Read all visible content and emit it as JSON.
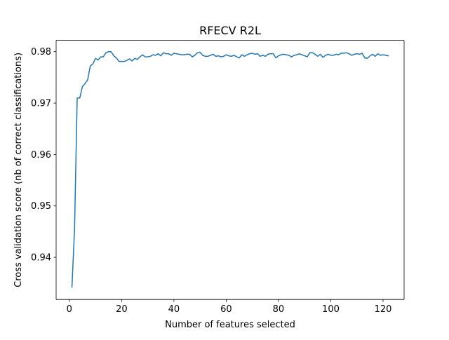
{
  "chart_data": {
    "type": "line",
    "title": "RFECV R2L",
    "xlabel": "Number of features selected",
    "ylabel": "Cross validation score (nb of correct classifications)",
    "xlim": [
      -5.05,
      128.05
    ],
    "ylim": [
      0.9318,
      0.9822
    ],
    "x_ticks": [
      0,
      20,
      40,
      60,
      80,
      100,
      120
    ],
    "x_tick_labels": [
      "0",
      "20",
      "40",
      "60",
      "80",
      "100",
      "120"
    ],
    "y_ticks": [
      0.94,
      0.95,
      0.96,
      0.97,
      0.98
    ],
    "y_tick_labels": [
      "0.94",
      "0.95",
      "0.96",
      "0.97",
      "0.98"
    ],
    "grid": false,
    "series": [
      {
        "color": "#1f77b4",
        "x": [
          1,
          2,
          3,
          4,
          5,
          6,
          7,
          8,
          9,
          10,
          11,
          12,
          13,
          14,
          15,
          16,
          17,
          18,
          19,
          20,
          21,
          22,
          23,
          24,
          25,
          26,
          27,
          28,
          29,
          30,
          31,
          32,
          33,
          34,
          35,
          36,
          37,
          38,
          39,
          40,
          41,
          42,
          43,
          44,
          45,
          46,
          47,
          48,
          49,
          50,
          51,
          52,
          53,
          54,
          55,
          56,
          57,
          58,
          59,
          60,
          61,
          62,
          63,
          64,
          65,
          66,
          67,
          68,
          69,
          70,
          71,
          72,
          73,
          74,
          75,
          76,
          77,
          78,
          79,
          80,
          81,
          82,
          83,
          84,
          85,
          86,
          87,
          88,
          89,
          90,
          91,
          92,
          93,
          94,
          95,
          96,
          97,
          98,
          99,
          100,
          101,
          102,
          103,
          104,
          105,
          106,
          107,
          108,
          109,
          110,
          111,
          112,
          113,
          114,
          115,
          116,
          117,
          118,
          119,
          120,
          121,
          122
        ],
        "y": [
          0.9342,
          0.9455,
          0.971,
          0.971,
          0.9732,
          0.9738,
          0.9745,
          0.9772,
          0.9776,
          0.9787,
          0.9784,
          0.979,
          0.979,
          0.9798,
          0.98,
          0.98,
          0.9792,
          0.9788,
          0.9781,
          0.9781,
          0.9781,
          0.9783,
          0.9786,
          0.9782,
          0.9787,
          0.9785,
          0.979,
          0.9794,
          0.979,
          0.979,
          0.9791,
          0.9794,
          0.9793,
          0.9796,
          0.9792,
          0.9798,
          0.9796,
          0.9796,
          0.9793,
          0.9797,
          0.9796,
          0.9795,
          0.9794,
          0.9794,
          0.9795,
          0.9795,
          0.979,
          0.9793,
          0.9798,
          0.9799,
          0.9793,
          0.9791,
          0.9791,
          0.9793,
          0.9795,
          0.9791,
          0.9792,
          0.979,
          0.9791,
          0.9794,
          0.9792,
          0.9791,
          0.9793,
          0.979,
          0.9788,
          0.9794,
          0.9791,
          0.9794,
          0.9796,
          0.9797,
          0.9795,
          0.9796,
          0.9791,
          0.9793,
          0.9791,
          0.9795,
          0.9796,
          0.9796,
          0.9788,
          0.9792,
          0.9794,
          0.9795,
          0.9794,
          0.9793,
          0.979,
          0.9793,
          0.9794,
          0.9796,
          0.9794,
          0.9792,
          0.979,
          0.9798,
          0.9798,
          0.9795,
          0.9791,
          0.9795,
          0.9789,
          0.9793,
          0.9795,
          0.9793,
          0.9793,
          0.9795,
          0.9794,
          0.9797,
          0.9797,
          0.9798,
          0.9796,
          0.9793,
          0.9795,
          0.9796,
          0.9795,
          0.9797,
          0.9788,
          0.9787,
          0.9792,
          0.9795,
          0.9791,
          0.9796,
          0.9793,
          0.9794,
          0.9793,
          0.9792
        ]
      }
    ]
  }
}
